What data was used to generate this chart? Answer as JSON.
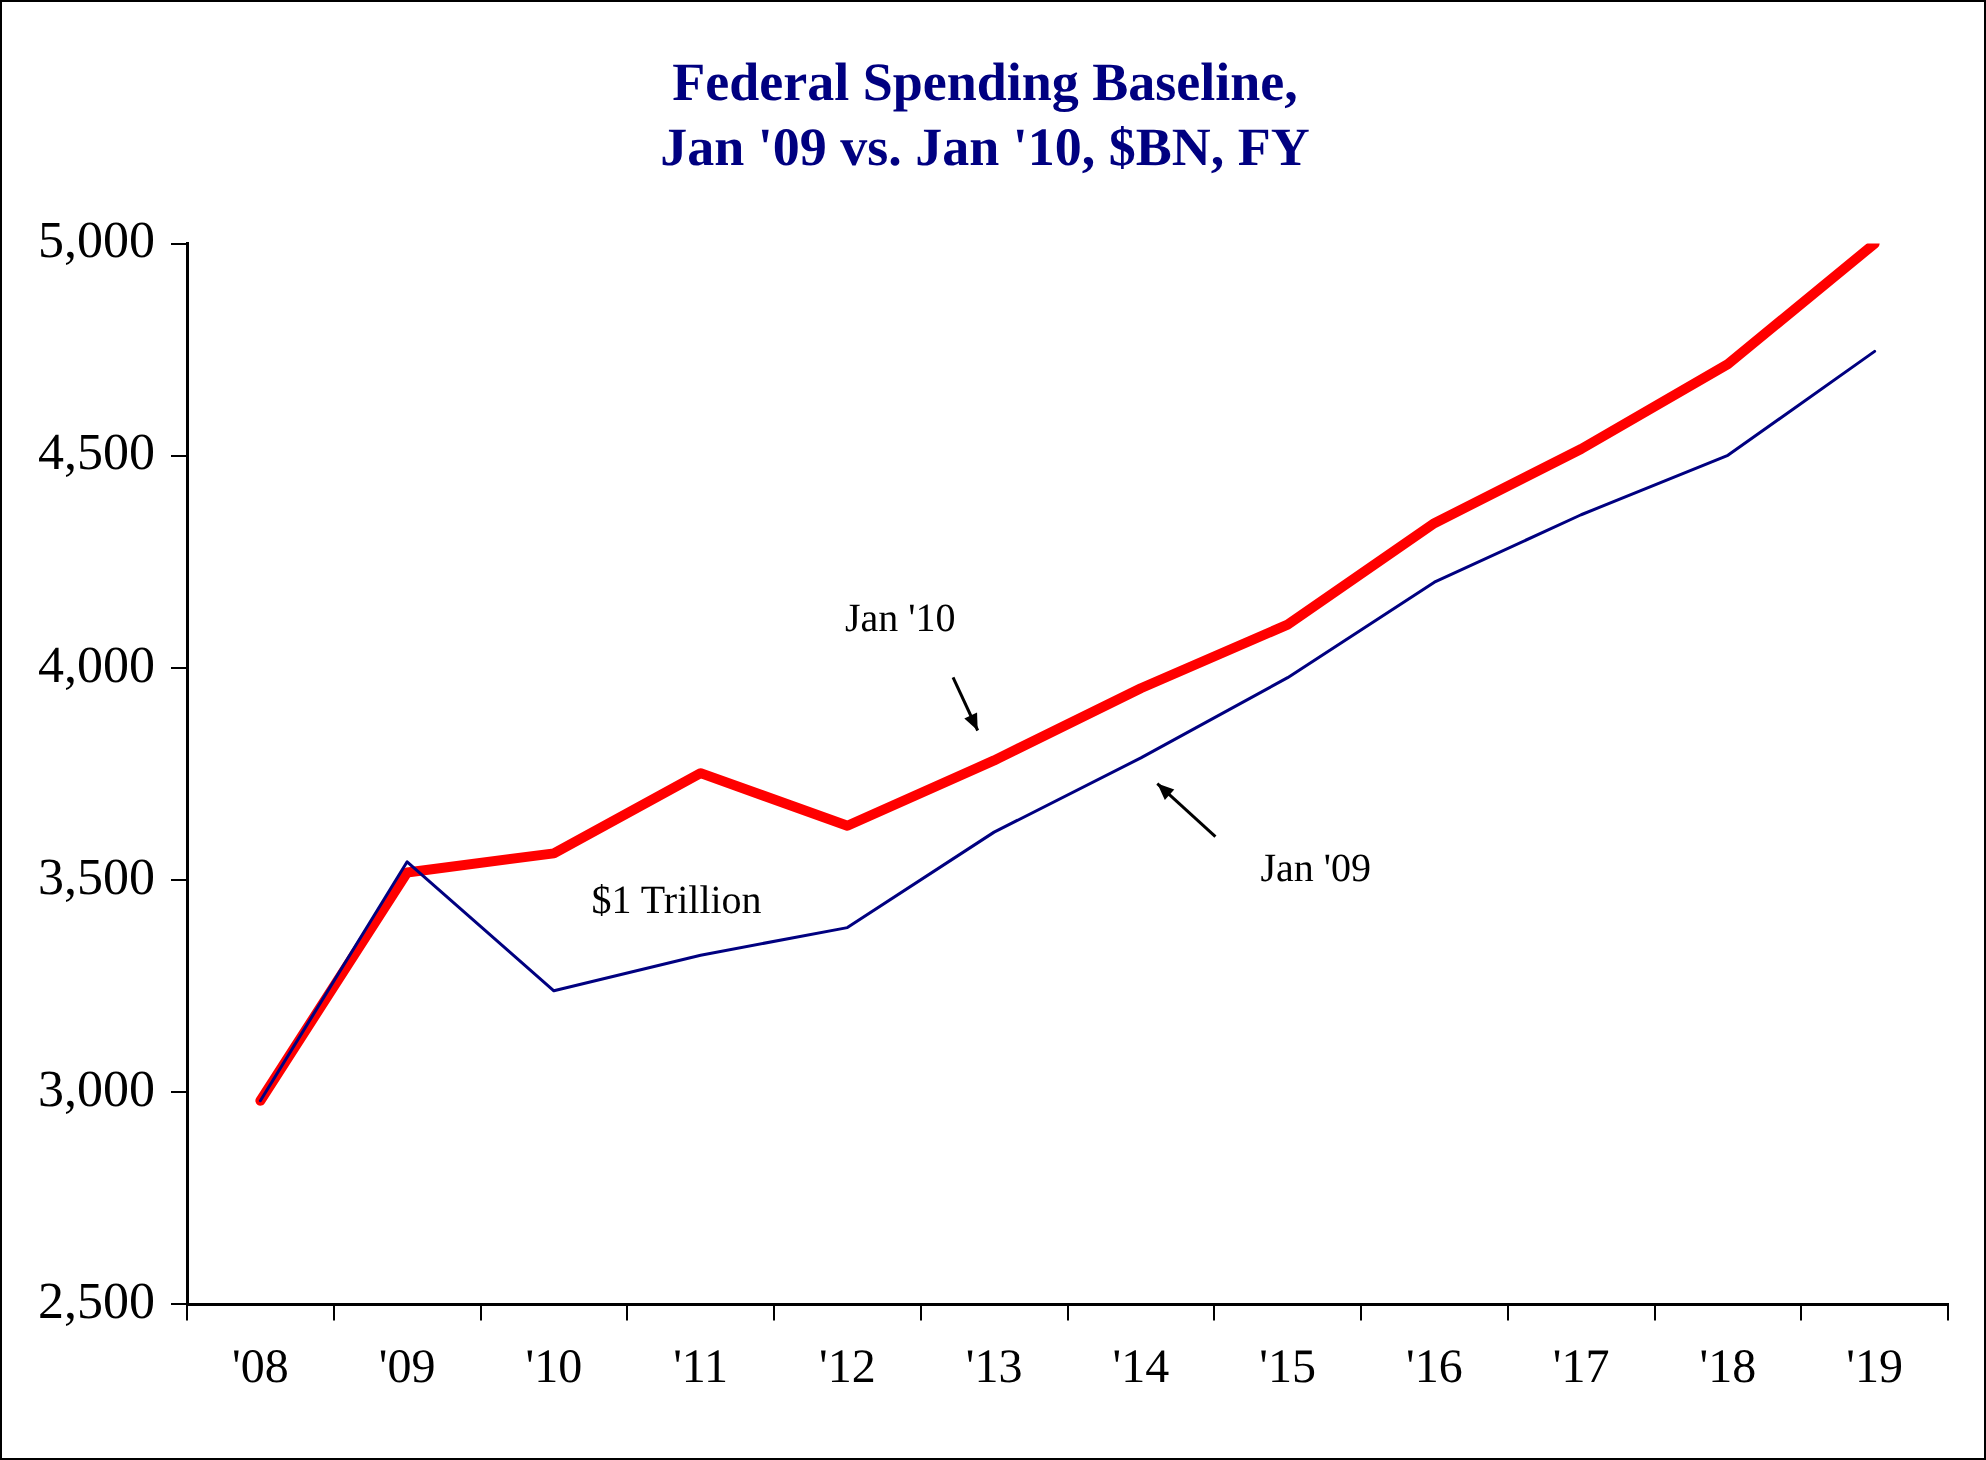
{
  "chart_data": {
    "type": "line",
    "title": "Federal Spending Baseline,\nJan '09 vs. Jan '10, $BN, FY",
    "categories": [
      "'08",
      "'09",
      "'10",
      "'11",
      "'12",
      "'13",
      "'14",
      "'15",
      "'16",
      "'17",
      "'18",
      "'19"
    ],
    "series": [
      {
        "color": "#ff0000",
        "values": [
          2980,
          3518,
          3563,
          3752,
          3628,
          3782,
          3952,
          4102,
          4341,
          4516,
          4716,
          5000
        ]
      },
      {
        "color": "#000080",
        "values": [
          2980,
          3543,
          3239,
          3323,
          3388,
          3613,
          3788,
          3977,
          4202,
          4361,
          4501,
          4746
        ]
      }
    ],
    "ylim": [
      2500,
      5000
    ],
    "yticks": [
      {
        "value": 2500,
        "label": "2,500"
      },
      {
        "value": 3000,
        "label": "3,000"
      },
      {
        "value": 3500,
        "label": "3,500"
      },
      {
        "value": 4000,
        "label": "4,000"
      },
      {
        "value": 4500,
        "label": "4,500"
      },
      {
        "value": 5000,
        "label": "5,000"
      }
    ],
    "annotations": [
      "Jan '10",
      "Jan '09",
      "$1 Trillion"
    ],
    "grid": false,
    "legend": false,
    "marker": "none",
    "line_style": "solid"
  }
}
